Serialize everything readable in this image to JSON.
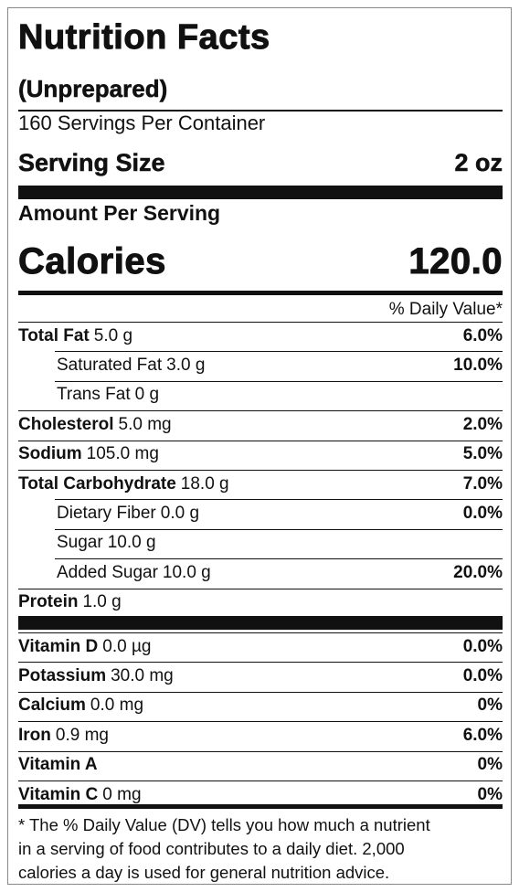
{
  "header": {
    "title": "Nutrition Facts",
    "subtitle": "(Unprepared)",
    "servings": "160 Servings Per Container",
    "serving_size_label": "Serving Size",
    "serving_size": "2 oz"
  },
  "calories": {
    "amount_per_serving": "Amount Per Serving",
    "label": "Calories",
    "value": "120.0"
  },
  "daily_value_header": "% Daily Value*",
  "nutrients": [
    {
      "name": "Total Fat",
      "amount": "5.0 g",
      "dv": "6.0%",
      "sub": [
        {
          "name": "Saturated Fat",
          "amount": "3.0 g",
          "dv": "10.0%"
        },
        {
          "name": "Trans Fat",
          "amount": "0 g"
        }
      ]
    },
    {
      "name": "Cholesterol",
      "amount": "5.0 mg",
      "dv": "2.0%"
    },
    {
      "name": "Sodium",
      "amount": "105.0 mg",
      "dv": "5.0%"
    },
    {
      "name": "Total Carbohydrate",
      "amount": "18.0 g",
      "dv": "7.0%",
      "sub": [
        {
          "name": "Dietary Fiber",
          "amount": "0.0 g",
          "dv": "0.0%"
        },
        {
          "name": "Sugar",
          "amount": "10.0 g"
        },
        {
          "name": "Added Sugar",
          "amount": "10.0 g",
          "dv": "20.0%"
        }
      ]
    },
    {
      "name": "Protein",
      "amount": "1.0 g"
    }
  ],
  "vitamins": [
    {
      "name": "Vitamin D",
      "amount": "0.0 µg",
      "dv": "0.0%"
    },
    {
      "name": "Potassium",
      "amount": "30.0 mg",
      "dv": "0.0%"
    },
    {
      "name": "Calcium",
      "amount": "0.0 mg",
      "dv": "0%"
    },
    {
      "name": "Iron",
      "amount": "0.9 mg",
      "dv": "6.0%"
    },
    {
      "name": "Vitamin A",
      "dv": "0%"
    },
    {
      "name": "Vitamin C",
      "amount": "0 mg",
      "dv": "0%"
    }
  ],
  "footnote": [
    "* The % Daily Value (DV) tells you how much a nutrient",
    "in a serving of food contributes to a daily diet. 2,000",
    "calories a day is used for general nutrition advice."
  ]
}
